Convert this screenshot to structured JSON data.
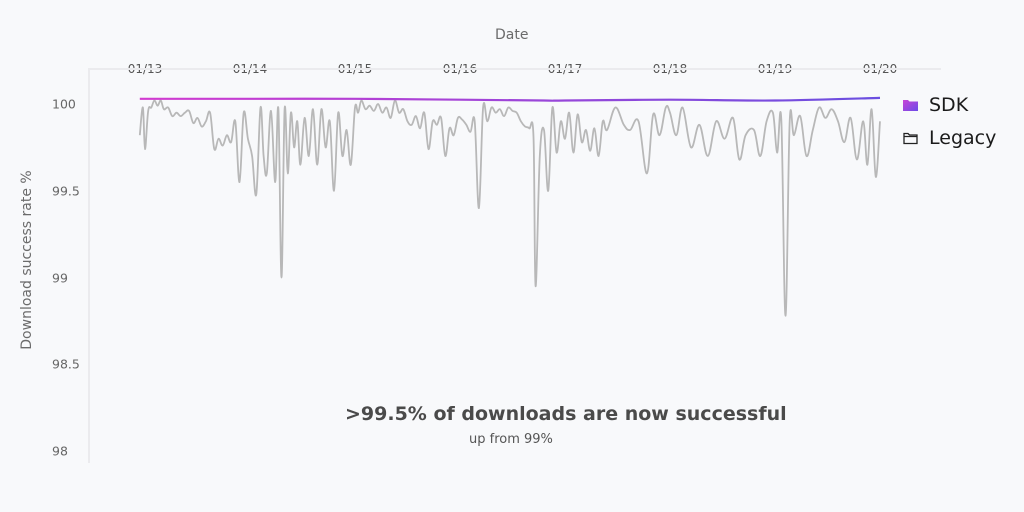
{
  "chart_data": {
    "type": "line",
    "title": "",
    "xlabel": "Date",
    "ylabel": "Download success rate %",
    "x_ticks": [
      "01/13",
      "01/14",
      "01/15",
      "01/16",
      "01/17",
      "01/18",
      "01/19",
      "01/20"
    ],
    "y_ticks": [
      "100",
      "99.5",
      "99",
      "98.5",
      "98"
    ],
    "ylim": [
      98,
      100.1
    ],
    "xlim_days": [
      -0.55,
      7.6
    ],
    "grid": false,
    "legend_position": "right",
    "series": [
      {
        "name": "SDK",
        "color": "#a24be0",
        "gradient": [
          "#d23bd0",
          "#6a4fe0"
        ],
        "icon": "folder-filled-icon",
        "x": [
          -0.05,
          1,
          2,
          3,
          3.8,
          4,
          5,
          6,
          7
        ],
        "values": [
          100.03,
          100.03,
          100.03,
          100.025,
          100.02,
          100.02,
          100.025,
          100.02,
          100.035
        ]
      },
      {
        "name": "Legacy",
        "color": "#b5b5b5",
        "icon": "folder-outline-icon",
        "x": [
          -0.05,
          -0.02,
          0.0,
          0.03,
          0.06,
          0.09,
          0.12,
          0.15,
          0.18,
          0.22,
          0.26,
          0.3,
          0.34,
          0.38,
          0.42,
          0.46,
          0.5,
          0.54,
          0.58,
          0.62,
          0.66,
          0.7,
          0.74,
          0.78,
          0.82,
          0.86,
          0.9,
          0.94,
          0.98,
          1.02,
          1.06,
          1.1,
          1.13,
          1.16,
          1.2,
          1.24,
          1.27,
          1.3,
          1.33,
          1.36,
          1.39,
          1.42,
          1.45,
          1.48,
          1.52,
          1.56,
          1.6,
          1.64,
          1.68,
          1.72,
          1.76,
          1.8,
          1.84,
          1.88,
          1.92,
          1.96,
          2.0,
          2.03,
          2.06,
          2.1,
          2.14,
          2.18,
          2.22,
          2.26,
          2.3,
          2.34,
          2.38,
          2.42,
          2.46,
          2.5,
          2.54,
          2.58,
          2.62,
          2.66,
          2.7,
          2.74,
          2.78,
          2.82,
          2.86,
          2.9,
          2.94,
          2.98,
          3.02,
          3.06,
          3.1,
          3.14,
          3.18,
          3.22,
          3.26,
          3.3,
          3.34,
          3.38,
          3.42,
          3.46,
          3.5,
          3.54,
          3.58,
          3.62,
          3.66,
          3.7,
          3.72,
          3.76,
          3.8,
          3.84,
          3.88,
          3.92,
          3.96,
          4.0,
          4.04,
          4.08,
          4.12,
          4.16,
          4.2,
          4.24,
          4.28,
          4.32,
          4.36,
          4.4,
          4.48,
          4.56,
          4.62,
          4.7,
          4.78,
          4.84,
          4.9,
          4.96,
          5.0,
          5.06,
          5.12,
          5.2,
          5.28,
          5.36,
          5.44,
          5.52,
          5.6,
          5.66,
          5.72,
          5.8,
          5.86,
          5.92,
          5.98,
          6.02,
          6.06,
          6.1,
          6.14,
          6.18,
          6.24,
          6.3,
          6.36,
          6.42,
          6.48,
          6.54,
          6.6,
          6.66,
          6.72,
          6.78,
          6.84,
          6.88,
          6.92,
          6.96,
          7.0
        ],
        "values": [
          99.82,
          99.98,
          99.74,
          99.96,
          99.98,
          100.02,
          99.99,
          100.02,
          99.97,
          99.98,
          99.93,
          99.95,
          99.93,
          99.95,
          99.96,
          99.89,
          99.92,
          99.87,
          99.9,
          99.95,
          99.74,
          99.8,
          99.76,
          99.82,
          99.78,
          99.9,
          99.55,
          99.95,
          99.8,
          99.7,
          99.48,
          99.98,
          99.7,
          99.6,
          99.96,
          99.55,
          99.97,
          99.0,
          99.97,
          99.6,
          99.95,
          99.75,
          99.9,
          99.65,
          99.92,
          99.7,
          99.97,
          99.65,
          99.97,
          99.75,
          99.9,
          99.5,
          99.95,
          99.7,
          99.85,
          99.65,
          99.98,
          99.95,
          100.02,
          99.97,
          99.99,
          99.96,
          100.0,
          99.95,
          99.98,
          99.92,
          100.02,
          99.95,
          99.97,
          99.9,
          99.88,
          99.93,
          99.86,
          99.95,
          99.74,
          99.9,
          99.88,
          99.92,
          99.7,
          99.86,
          99.82,
          99.92,
          99.91,
          99.88,
          99.84,
          99.9,
          99.4,
          99.98,
          99.9,
          99.98,
          99.95,
          99.97,
          99.93,
          99.98,
          99.96,
          99.95,
          99.9,
          99.87,
          99.86,
          99.81,
          98.95,
          99.7,
          99.85,
          99.5,
          99.98,
          99.72,
          99.9,
          99.8,
          99.95,
          99.72,
          99.94,
          99.78,
          99.85,
          99.73,
          99.86,
          99.7,
          99.9,
          99.85,
          99.98,
          99.88,
          99.85,
          99.9,
          99.6,
          99.94,
          99.82,
          99.98,
          99.95,
          99.82,
          99.98,
          99.75,
          99.88,
          99.7,
          99.9,
          99.8,
          99.92,
          99.68,
          99.82,
          99.85,
          99.7,
          99.9,
          99.95,
          99.72,
          99.91,
          98.78,
          99.9,
          99.82,
          99.93,
          99.7,
          99.85,
          99.98,
          99.92,
          99.97,
          99.9,
          99.78,
          99.92,
          99.68,
          99.9,
          99.65,
          99.97,
          99.58,
          99.9
        ]
      }
    ],
    "annotations": [
      {
        "text": ">99.5% of downloads are now successful",
        "style": "bold"
      },
      {
        "text": "up from 99%",
        "style": "normal"
      }
    ]
  },
  "labels": {
    "x_title": "Date",
    "y_title": "Download success rate %",
    "legend": [
      "SDK",
      "Legacy"
    ],
    "headline": ">99.5% of downloads are now successful",
    "subline": "up from 99%"
  }
}
